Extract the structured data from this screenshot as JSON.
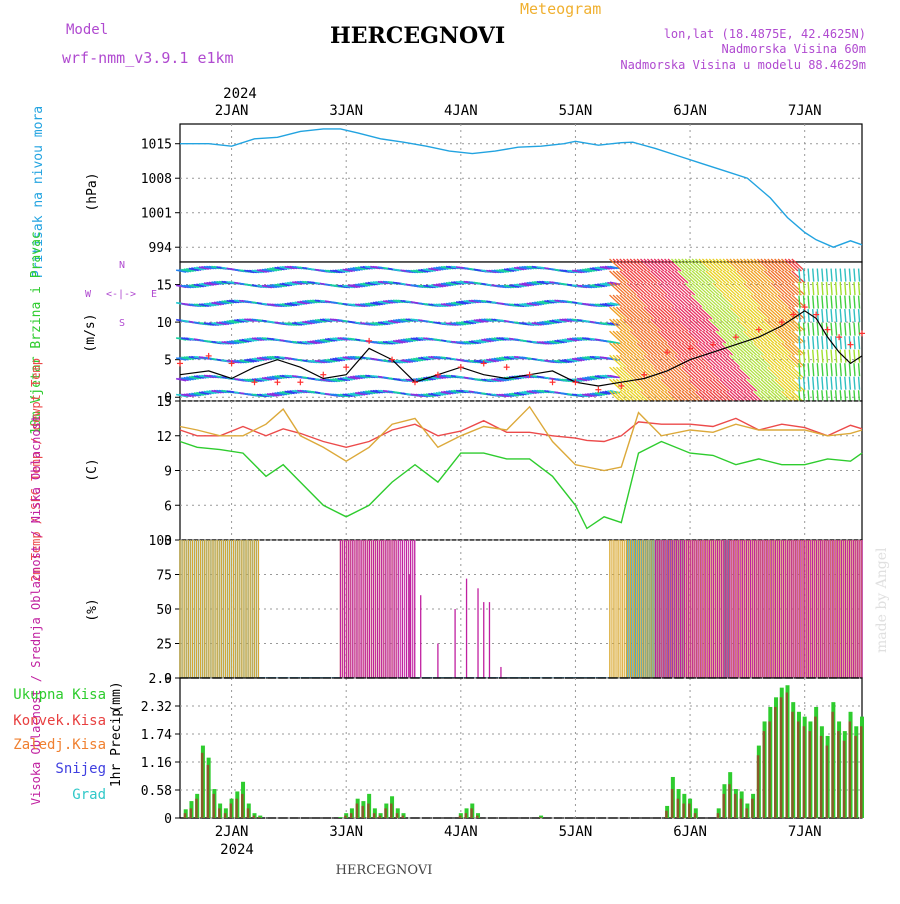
{
  "header": {
    "model_label": "Model",
    "model_name": "wrf-nmm_v3.9.1  e1km",
    "title": "HERCEGNOVI",
    "meteogram_label": "Meteogram",
    "lonlat": "lon,lat (18.4875E, 42.4625N)",
    "altitude": "Nadmorska Visina 60m",
    "model_altitude": "Nadmorska Visina u modelu 88.4629m",
    "watermark": "made by Angel",
    "footer_title": "HERCEGNOVI"
  },
  "time_axis": {
    "year": "2024",
    "days": [
      "2JAN",
      "3JAN",
      "4JAN",
      "5JAN",
      "6JAN",
      "7JAN"
    ],
    "start_day_fraction": 1.55,
    "end_day_fraction": 7.5
  },
  "colors": {
    "pressure": "#22a3e0",
    "temp2m": "#ec4a4a",
    "sfc": "#dca93a",
    "dewpt": "#2ecc2e",
    "wind_speed": "#000000",
    "gust": "#ff3030",
    "high_cloud": "#1aa0e8",
    "mid_cloud": "#d9a830",
    "low_cloud": "#c020a0",
    "total_precip": "#2ecc2e",
    "conv_precip": "#e84040",
    "frz_precip": "#f08030",
    "snow": "#4040e0",
    "hail": "#30c8c8"
  },
  "chart_data": [
    {
      "type": "line",
      "panel": "pressure",
      "ylabel": "Pritisak na nivou mora",
      "unit": "(hPa)",
      "yticks": [
        "1015",
        "1008",
        "1001",
        "994"
      ],
      "ylim": [
        991,
        1019
      ],
      "x": [
        1.55,
        1.8,
        2.0,
        2.2,
        2.4,
        2.6,
        2.8,
        2.95,
        3.1,
        3.3,
        3.5,
        3.7,
        3.9,
        4.1,
        4.3,
        4.5,
        4.7,
        4.9,
        5.0,
        5.2,
        5.4,
        5.5,
        5.7,
        5.9,
        6.1,
        6.3,
        6.5,
        6.7,
        6.85,
        7.0,
        7.1,
        7.25,
        7.4,
        7.5
      ],
      "series": [
        {
          "name": "pressure",
          "values": [
            1015,
            1015,
            1014.5,
            1016,
            1016.3,
            1017.5,
            1018,
            1018,
            1017.2,
            1016,
            1015.3,
            1014.5,
            1013.5,
            1013,
            1013.5,
            1014.3,
            1014.5,
            1015,
            1015.5,
            1014.7,
            1015.2,
            1015.3,
            1014,
            1012.5,
            1011,
            1009.5,
            1008,
            1004,
            1000,
            997,
            995.5,
            994,
            995.3,
            994.5
          ]
        }
      ]
    },
    {
      "type": "line",
      "panel": "wind",
      "ylabel": "10m Vjetar Brzina i Pravac",
      "unit": "(m/s)",
      "yticks": [
        "0",
        "5",
        "10",
        "15"
      ],
      "ylim": [
        -0.5,
        18
      ],
      "compass": [
        "N",
        "W",
        "<-|->",
        "E",
        "S"
      ],
      "x": [
        1.55,
        1.8,
        2.0,
        2.2,
        2.4,
        2.6,
        2.8,
        3.0,
        3.2,
        3.4,
        3.6,
        3.8,
        4.0,
        4.2,
        4.4,
        4.6,
        4.8,
        5.0,
        5.2,
        5.4,
        5.6,
        5.8,
        6.0,
        6.2,
        6.4,
        6.6,
        6.8,
        6.9,
        7.0,
        7.1,
        7.2,
        7.3,
        7.4,
        7.5
      ],
      "series": [
        {
          "name": "speed",
          "values": [
            3,
            3.5,
            2.5,
            4,
            5,
            4,
            2.5,
            3,
            6.5,
            5,
            2,
            3,
            4,
            3,
            2.5,
            3,
            3.5,
            2,
            1.5,
            2,
            2.5,
            3.5,
            5,
            6,
            7,
            8,
            9.5,
            10.5,
            11.5,
            10.5,
            8,
            6,
            4.5,
            5.5
          ]
        },
        {
          "name": "gust",
          "values": [
            4.5,
            5.5,
            4.5,
            2,
            2,
            2,
            3,
            4,
            7.5,
            5,
            2,
            3,
            4,
            4.5,
            4,
            3,
            2,
            2,
            1,
            1.5,
            3,
            6,
            6.5,
            7,
            8,
            9,
            10,
            11,
            12,
            11,
            9,
            8,
            7,
            8.5
          ]
        }
      ]
    },
    {
      "type": "line",
      "panel": "temperature",
      "ylabel": "2m Temp / SFC Temp / dewpt Temp",
      "unit": "(C)",
      "yticks": [
        "3",
        "6",
        "9",
        "12",
        "15"
      ],
      "ylim": [
        3,
        15
      ],
      "x": [
        1.55,
        1.7,
        1.9,
        2.1,
        2.3,
        2.45,
        2.6,
        2.8,
        3.0,
        3.2,
        3.4,
        3.6,
        3.8,
        4.0,
        4.2,
        4.4,
        4.6,
        4.8,
        5.0,
        5.1,
        5.25,
        5.4,
        5.55,
        5.75,
        6.0,
        6.2,
        6.4,
        6.6,
        6.8,
        7.0,
        7.2,
        7.4,
        7.5
      ],
      "series": [
        {
          "name": "2m",
          "values": [
            12.5,
            12,
            12,
            12.8,
            12,
            12.6,
            12.2,
            11.5,
            11,
            11.5,
            12.5,
            13,
            12,
            12.4,
            13.3,
            12.3,
            12.3,
            12,
            11.8,
            11.6,
            11.5,
            12,
            13.2,
            13,
            13,
            12.8,
            13.5,
            12.5,
            13,
            12.7,
            12,
            12.9,
            12.6
          ]
        },
        {
          "name": "SFC",
          "values": [
            12.8,
            12.5,
            12,
            12,
            13,
            14.3,
            12,
            11,
            9.8,
            11,
            13,
            13.5,
            11,
            12,
            12.8,
            12.5,
            14.5,
            11.5,
            9.5,
            9.3,
            9,
            9.3,
            14,
            12,
            12.5,
            12.3,
            13,
            12.5,
            12.5,
            12.5,
            12,
            12.2,
            12.5
          ]
        },
        {
          "name": "dewpt",
          "values": [
            11.5,
            11,
            10.8,
            10.5,
            8.5,
            9.5,
            8,
            6,
            5,
            6,
            8,
            9.5,
            8,
            10.5,
            10.5,
            10,
            10,
            8.5,
            6,
            4,
            5,
            4.5,
            10.5,
            11.5,
            10.5,
            10.3,
            9.5,
            10,
            9.5,
            9.5,
            10,
            9.8,
            10.5
          ]
        }
      ]
    },
    {
      "type": "bar",
      "panel": "cloud",
      "ylabel": "Visoka Oblacnost / Srednja Oblacnost / Niska Oblacnost",
      "unit": "(%)",
      "yticks": [
        "0",
        "25",
        "50",
        "75",
        "100"
      ],
      "ylim": [
        0,
        100
      ],
      "segments": [
        {
          "name": "high",
          "ranges": [
            [
              1.55,
              2.25
            ],
            [
              5.45,
              5.95
            ],
            [
              6.3,
              6.35
            ]
          ],
          "value": 100
        },
        {
          "name": "mid",
          "ranges": [
            [
              1.55,
              2.25
            ],
            [
              2.95,
              3.45
            ],
            [
              5.3,
              7.5
            ]
          ],
          "value": 100
        },
        {
          "name": "low",
          "ranges": [
            [
              2.95,
              3.6
            ],
            [
              5.7,
              7.5
            ]
          ],
          "value": 100
        },
        {
          "name": "low_sparse",
          "x": [
            3.55,
            3.65,
            3.8,
            3.95,
            4.05,
            4.15,
            4.2,
            4.25,
            4.35
          ],
          "values": [
            75,
            60,
            25,
            50,
            72,
            65,
            55,
            55,
            8
          ]
        }
      ]
    },
    {
      "type": "bar",
      "panel": "precip",
      "legend": [
        "Ukupna Kisa",
        "Konvek.Kisa",
        "Zaledj.Kisa",
        "Snijeg",
        "Grad"
      ],
      "ylabel": "1hr Precip",
      "unit": "(mm)",
      "yticks": [
        "0",
        "0.58",
        "1.16",
        "1.74",
        "2.32",
        "2.9"
      ],
      "ylim": [
        0,
        2.9
      ],
      "x": [
        1.6,
        1.65,
        1.7,
        1.75,
        1.8,
        1.85,
        1.9,
        1.95,
        2.0,
        2.05,
        2.1,
        2.15,
        2.2,
        2.25,
        2.95,
        3.0,
        3.05,
        3.1,
        3.15,
        3.2,
        3.25,
        3.3,
        3.35,
        3.4,
        3.45,
        3.5,
        4.0,
        4.05,
        4.1,
        4.15,
        4.7,
        5.8,
        5.85,
        5.9,
        5.95,
        6.0,
        6.05,
        6.25,
        6.3,
        6.35,
        6.4,
        6.45,
        6.5,
        6.55,
        6.6,
        6.65,
        6.7,
        6.75,
        6.8,
        6.85,
        6.9,
        6.95,
        7.0,
        7.05,
        7.1,
        7.15,
        7.2,
        7.25,
        7.3,
        7.35,
        7.4,
        7.45,
        7.5
      ],
      "series": [
        {
          "name": "total",
          "values": [
            0.18,
            0.35,
            0.5,
            1.5,
            1.25,
            0.6,
            0.3,
            0.2,
            0.4,
            0.55,
            0.75,
            0.3,
            0.1,
            0.05,
            0.02,
            0.1,
            0.2,
            0.4,
            0.35,
            0.5,
            0.2,
            0.1,
            0.3,
            0.45,
            0.2,
            0.1,
            0.1,
            0.2,
            0.3,
            0.1,
            0.05,
            0.25,
            0.85,
            0.6,
            0.5,
            0.4,
            0.2,
            0.2,
            0.7,
            0.95,
            0.6,
            0.55,
            0.3,
            0.5,
            1.5,
            2.0,
            2.3,
            2.5,
            2.7,
            2.75,
            2.4,
            2.2,
            2.1,
            2.0,
            2.3,
            1.9,
            1.7,
            2.4,
            2.0,
            1.8,
            2.2,
            1.9,
            2.1
          ]
        },
        {
          "name": "convective",
          "values": [
            0.1,
            0.2,
            0.4,
            1.35,
            1.1,
            0.5,
            0.2,
            0.1,
            0.3,
            0.4,
            0.5,
            0.2,
            0.05,
            0.02,
            0.0,
            0.05,
            0.1,
            0.3,
            0.25,
            0.3,
            0.1,
            0.05,
            0.2,
            0.3,
            0.1,
            0.05,
            0.05,
            0.1,
            0.2,
            0.05,
            0.02,
            0.15,
            0.6,
            0.4,
            0.3,
            0.3,
            0.1,
            0.1,
            0.5,
            0.7,
            0.5,
            0.4,
            0.2,
            0.4,
            1.3,
            1.8,
            2.0,
            2.3,
            2.5,
            2.6,
            2.2,
            2.0,
            1.9,
            1.8,
            2.1,
            1.7,
            1.5,
            2.2,
            1.8,
            1.6,
            2.0,
            1.7,
            1.9
          ]
        }
      ]
    }
  ]
}
